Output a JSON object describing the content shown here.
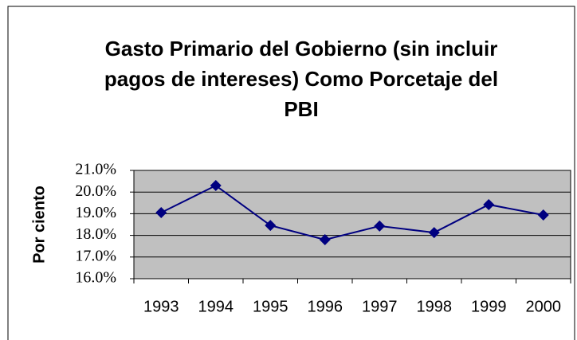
{
  "chart_data": {
    "type": "line",
    "title": "Gasto Primario del Gobierno (sin incluir pagos de intereses) Como Porcetaje del PBI",
    "y_label": "Por ciento",
    "categories": [
      "1993",
      "1994",
      "1995",
      "1996",
      "1997",
      "1998",
      "1999",
      "2000"
    ],
    "series": [
      {
        "name": "Gasto Primario",
        "color": "#000080",
        "values": [
          19.05,
          20.3,
          18.46,
          17.8,
          18.43,
          18.13,
          19.42,
          18.94
        ]
      }
    ],
    "ylim": [
      16,
      21
    ],
    "yticks": [
      {
        "value": 16,
        "label": "16.0%"
      },
      {
        "value": 17,
        "label": "17.0%"
      },
      {
        "value": 18,
        "label": "18.0%"
      },
      {
        "value": 19,
        "label": "19.0%"
      },
      {
        "value": 20,
        "label": "20.0%"
      },
      {
        "value": 21,
        "label": "21.0%"
      }
    ],
    "grid": true,
    "plot_background": "#c0c0c0"
  }
}
